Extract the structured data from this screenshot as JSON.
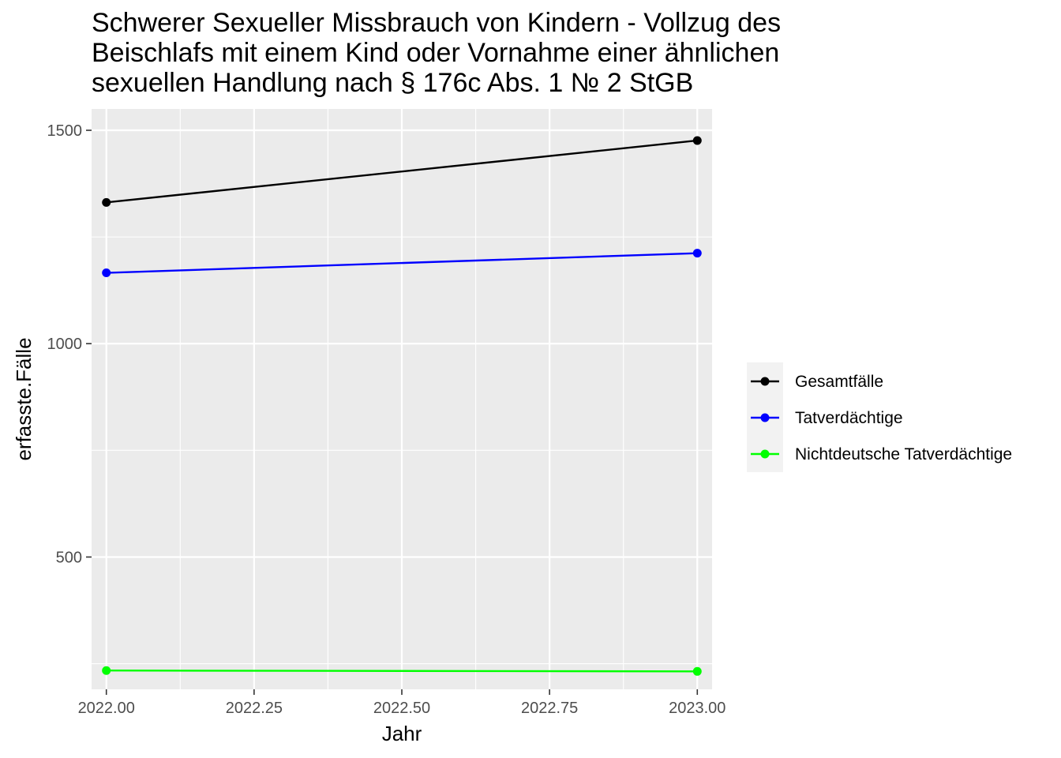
{
  "chart_data": {
    "type": "line",
    "title_lines": [
      "Schwerer Sexueller Missbrauch von Kindern - Vollzug des",
      "Beischlafs mit einem Kind oder Vornahme einer ähnlichen",
      "sexuellen Handlung nach § 176c Abs. 1 № 2 StGB"
    ],
    "xlabel": "Jahr",
    "ylabel": "erfasste.Fälle",
    "x_ticks": [
      "2022.00",
      "2022.25",
      "2022.50",
      "2022.75",
      "2023.00"
    ],
    "x_tick_values": [
      2022.0,
      2022.25,
      2022.5,
      2022.75,
      2023.0
    ],
    "y_ticks": [
      "500",
      "1000",
      "1500"
    ],
    "y_tick_values": [
      500,
      1000,
      1500
    ],
    "xlim": [
      2021.975,
      2023.025
    ],
    "ylim": [
      190,
      1550
    ],
    "grid": true,
    "legend_position": "right",
    "series": [
      {
        "name": "Gesamtfälle",
        "color": "#000000",
        "x": [
          2022,
          2023
        ],
        "values": [
          1331,
          1476
        ]
      },
      {
        "name": "Tatverdächtige",
        "color": "#0000ff",
        "x": [
          2022,
          2023
        ],
        "values": [
          1166,
          1212
        ]
      },
      {
        "name": "Nichtdeutsche Tatverdächtige",
        "color": "#00ff00",
        "x": [
          2022,
          2023
        ],
        "values": [
          234,
          232
        ]
      }
    ]
  }
}
